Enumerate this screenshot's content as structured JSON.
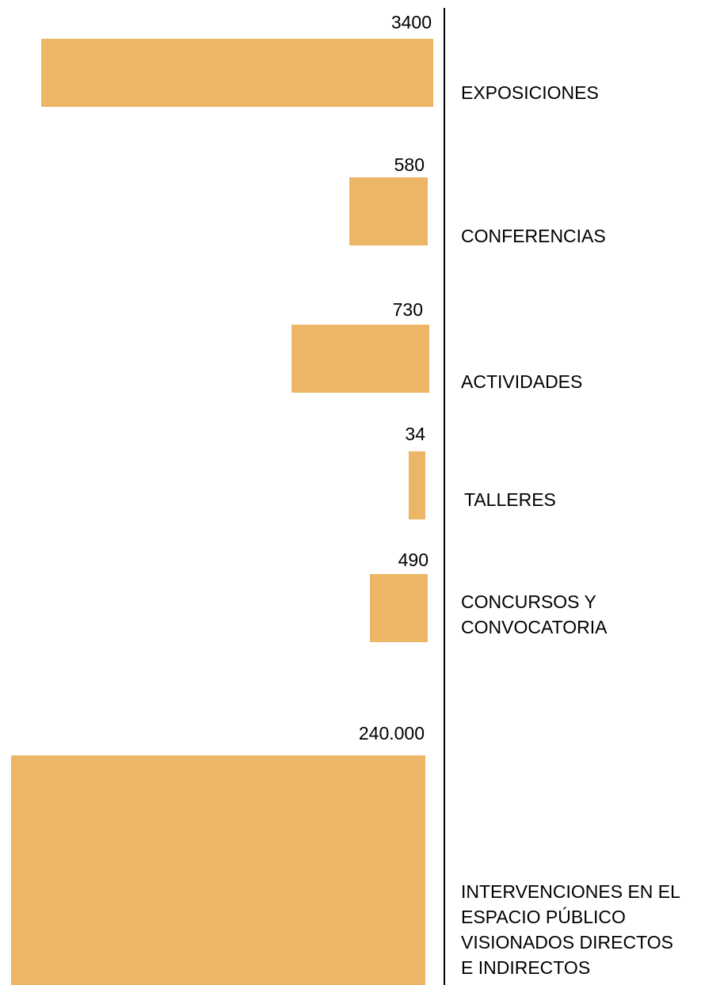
{
  "items": [
    {
      "value": "3400",
      "label": [
        "EXPOSICIONES"
      ]
    },
    {
      "value": "580",
      "label": [
        "CONFERENCIAS"
      ]
    },
    {
      "value": "730",
      "label": [
        "ACTIVIDADES"
      ]
    },
    {
      "value": "34",
      "label": [
        "TALLERES"
      ]
    },
    {
      "value": "490",
      "label": [
        "CONCURSOS Y",
        "CONVOCATORIA"
      ]
    },
    {
      "value": "240.000",
      "label": [
        "INTERVENCIONES EN EL",
        "ESPACIO PÚBLICO",
        "VISIONADOS DIRECTOS",
        "E INDIRECTOS"
      ]
    }
  ]
}
